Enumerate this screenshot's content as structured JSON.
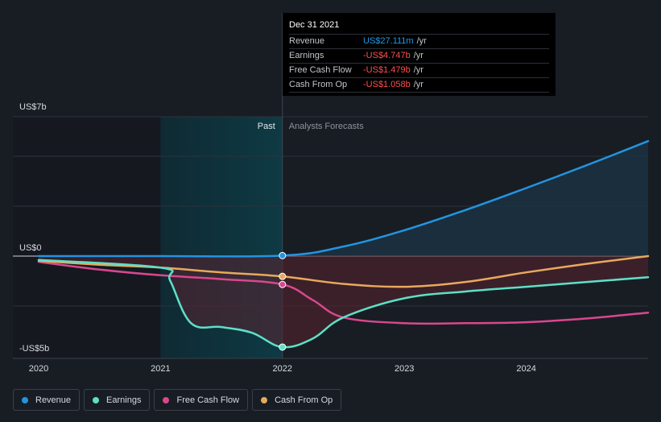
{
  "tooltip": {
    "date": "Dec 31 2021",
    "rows": [
      {
        "name": "Revenue",
        "value": "US$27.111m",
        "unit": "/yr"
      },
      {
        "name": "Earnings",
        "value": "-US$4.747b",
        "unit": "/yr"
      },
      {
        "name": "Free Cash Flow",
        "value": "-US$1.479b",
        "unit": "/yr"
      },
      {
        "name": "Cash From Op",
        "value": "-US$1.058b",
        "unit": "/yr"
      }
    ]
  },
  "legend": [
    {
      "label": "Revenue",
      "color": "#2394e0"
    },
    {
      "label": "Earnings",
      "color": "#5de0c6"
    },
    {
      "label": "Free Cash Flow",
      "color": "#d9478e"
    },
    {
      "label": "Cash From Op",
      "color": "#e8a95c"
    }
  ],
  "chart_data": {
    "type": "line",
    "y_tick_labels": [
      "US$7b",
      "US$0",
      "-US$5b"
    ],
    "x_tick_labels": [
      "2020",
      "2021",
      "2022",
      "2023",
      "2024"
    ],
    "ylim": [
      -5,
      7
    ],
    "xlim": [
      2020,
      2025.0
    ],
    "past_label": "Past",
    "forecast_label": "Analysts Forecasts",
    "highlight_x": 2022.0,
    "series": [
      {
        "name": "Revenue",
        "color": "#2394e0",
        "x": [
          2020.0,
          2021.0,
          2022.0,
          2022.5,
          2023.0,
          2023.5,
          2024.0,
          2024.5,
          2025.0
        ],
        "y": [
          0.0,
          0.0,
          0.027,
          0.5,
          1.35,
          2.4,
          3.55,
          4.75,
          6.0
        ]
      },
      {
        "name": "Earnings",
        "color": "#5de0c6",
        "x": [
          2020.0,
          2021.0,
          2021.08,
          2021.25,
          2021.5,
          2021.75,
          2022.0,
          2022.25,
          2022.5,
          2023.0,
          2023.5,
          2024.0,
          2024.5,
          2025.0
        ],
        "y": [
          -0.2,
          -0.6,
          -1.3,
          -3.5,
          -3.7,
          -4.0,
          -4.747,
          -4.3,
          -3.2,
          -2.2,
          -1.85,
          -1.6,
          -1.35,
          -1.1
        ]
      },
      {
        "name": "Free Cash Flow",
        "color": "#d9478e",
        "x": [
          2020.0,
          2020.5,
          2021.0,
          2021.5,
          2022.0,
          2022.25,
          2022.5,
          2023.0,
          2023.5,
          2024.0,
          2024.5,
          2025.0
        ],
        "y": [
          -0.3,
          -0.7,
          -1.0,
          -1.2,
          -1.479,
          -2.3,
          -3.2,
          -3.5,
          -3.5,
          -3.45,
          -3.25,
          -2.95
        ]
      },
      {
        "name": "Cash From Op",
        "color": "#e8a95c",
        "x": [
          2020.0,
          2020.5,
          2021.0,
          2021.5,
          2022.0,
          2022.5,
          2023.0,
          2023.5,
          2024.0,
          2024.5,
          2025.0
        ],
        "y": [
          -0.25,
          -0.45,
          -0.6,
          -0.85,
          -1.058,
          -1.45,
          -1.6,
          -1.35,
          -0.85,
          -0.4,
          0.0
        ]
      }
    ]
  }
}
